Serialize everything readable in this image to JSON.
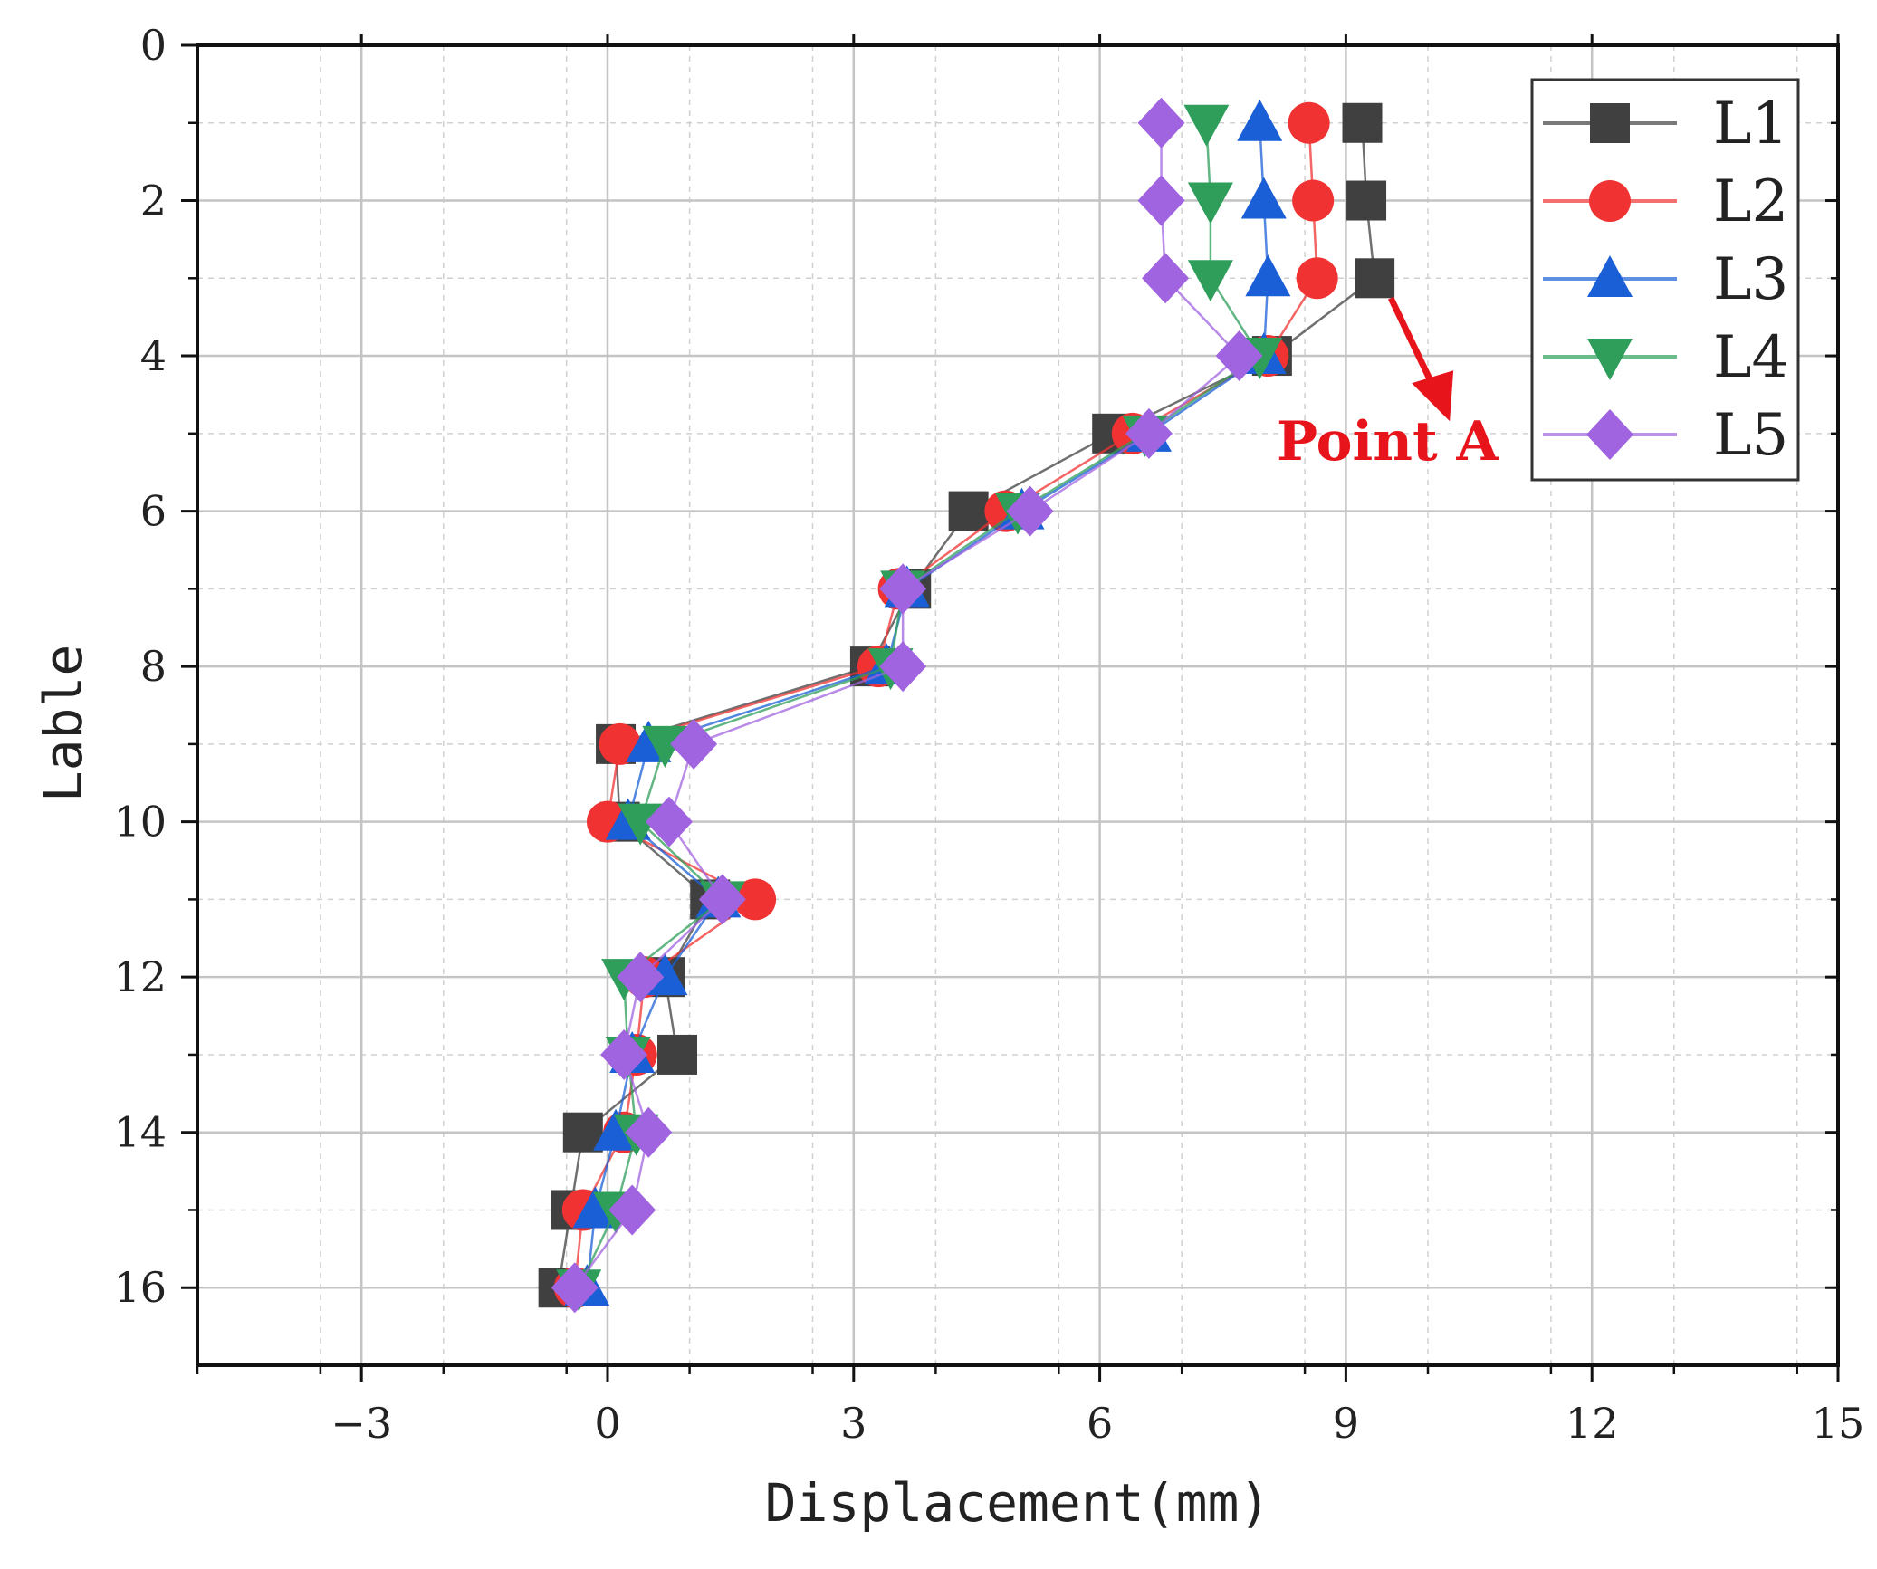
{
  "chart_data": {
    "type": "line",
    "title": "",
    "xlabel": "Displacement(mm)",
    "ylabel": "Lable",
    "xlim": [
      -5,
      15
    ],
    "ylim": [
      17,
      0
    ],
    "x_ticks": [
      -3,
      0,
      3,
      6,
      9,
      12,
      15
    ],
    "y_ticks": [
      0,
      2,
      4,
      6,
      8,
      10,
      12,
      14,
      16
    ],
    "grid": true,
    "legend_position": "top-right",
    "annotation": {
      "text": "Point A",
      "target_series": "L1",
      "target_label": 3
    },
    "labels": [
      1,
      2,
      3,
      4,
      5,
      6,
      7,
      8,
      9,
      10,
      11,
      12,
      13,
      14,
      15,
      16
    ],
    "series": [
      {
        "name": "L1",
        "color": "#404040",
        "marker": "square",
        "values": [
          9.2,
          9.25,
          9.35,
          8.1,
          6.15,
          4.4,
          3.7,
          3.2,
          0.1,
          0.15,
          1.25,
          0.7,
          0.85,
          -0.3,
          -0.45,
          -0.6
        ]
      },
      {
        "name": "L2",
        "color": "#f03232",
        "marker": "circle",
        "values": [
          8.55,
          8.6,
          8.65,
          8.05,
          6.4,
          4.85,
          3.55,
          3.3,
          0.15,
          0.0,
          1.8,
          0.45,
          0.35,
          0.2,
          -0.3,
          -0.4
        ]
      },
      {
        "name": "L3",
        "color": "#1a5fd6",
        "marker": "triangle-up",
        "values": [
          7.95,
          8.0,
          8.05,
          8.0,
          6.6,
          5.05,
          3.65,
          3.4,
          0.5,
          0.25,
          1.35,
          0.7,
          0.3,
          0.1,
          -0.15,
          -0.25
        ]
      },
      {
        "name": "L4",
        "color": "#2e9e5a",
        "marker": "triangle-down",
        "values": [
          7.3,
          7.35,
          7.35,
          7.95,
          6.55,
          5.0,
          3.6,
          3.45,
          0.7,
          0.4,
          1.4,
          0.2,
          0.25,
          0.35,
          0.1,
          -0.35
        ]
      },
      {
        "name": "L5",
        "color": "#a064e0",
        "marker": "diamond",
        "values": [
          6.75,
          6.75,
          6.8,
          7.7,
          6.6,
          5.15,
          3.6,
          3.6,
          1.05,
          0.75,
          1.4,
          0.4,
          0.2,
          0.5,
          0.3,
          -0.4
        ]
      }
    ]
  }
}
